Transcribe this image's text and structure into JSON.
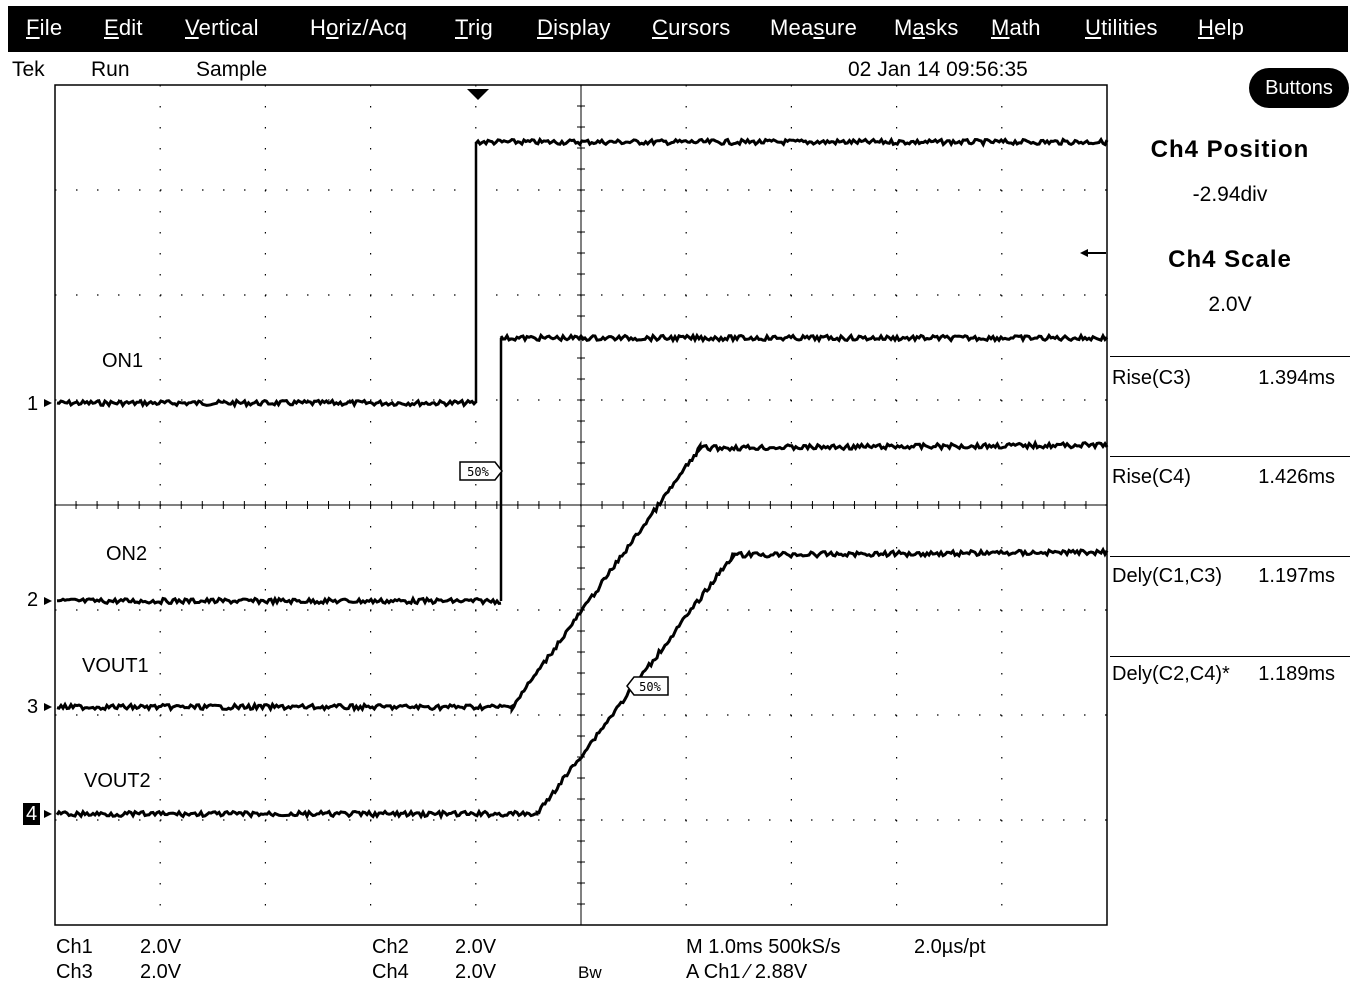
{
  "menu": [
    {
      "pre": "",
      "u": "F",
      "post": "ile"
    },
    {
      "pre": "",
      "u": "E",
      "post": "dit"
    },
    {
      "pre": "",
      "u": "V",
      "post": "ertical"
    },
    {
      "pre": "H",
      "u": "o",
      "post": "riz/Acq"
    },
    {
      "pre": "",
      "u": "T",
      "post": "rig"
    },
    {
      "pre": "",
      "u": "D",
      "post": "isplay"
    },
    {
      "pre": "",
      "u": "C",
      "post": "ursors"
    },
    {
      "pre": "Mea",
      "u": "s",
      "post": "ure"
    },
    {
      "pre": "M",
      "u": "a",
      "post": "sks"
    },
    {
      "pre": "",
      "u": "M",
      "post": "ath"
    },
    {
      "pre": "",
      "u": "U",
      "post": "tilities"
    },
    {
      "pre": "",
      "u": "H",
      "post": "elp"
    }
  ],
  "status": {
    "brand": "Tek",
    "run": "Run",
    "mode": "Sample",
    "datetime": "02 Jan 14 09:56:35"
  },
  "buttons_label": "Buttons",
  "right_panel": {
    "position_title": "Ch4 Position",
    "position_value": "-2.94div",
    "scale_title": "Ch4 Scale",
    "scale_value": "2.0V"
  },
  "measurements": [
    {
      "name": "Rise(C3)",
      "value": "1.394ms"
    },
    {
      "name": "Rise(C4)",
      "value": "1.426ms"
    },
    {
      "name": "Dely(C1,C3)",
      "value": "1.197ms"
    },
    {
      "name": "Dely(C2,C4)*",
      "value": "1.189ms"
    }
  ],
  "waveforms": [
    {
      "label": "ON1",
      "marker": "1"
    },
    {
      "label": "ON2",
      "marker": "2"
    },
    {
      "label": "VOUT1",
      "marker": "3"
    },
    {
      "label": "VOUT2",
      "marker": "4"
    }
  ],
  "level_flags": [
    "50%",
    "50%"
  ],
  "bottom": {
    "ch1": "Ch1",
    "ch1_scale": "2.0V",
    "ch3": "Ch3",
    "ch3_scale": "2.0V",
    "ch2": "Ch2",
    "ch2_scale": "2.0V",
    "ch4": "Ch4",
    "ch4_scale": "2.0V",
    "bw": "Bw",
    "timebase": "M 1.0ms 500kS/s",
    "resolution": "2.0µs/pt",
    "trigger": "A  Ch1  ⁄  2.88V"
  },
  "colors": {
    "background": "#ffffff",
    "trace": "#000000",
    "menubar": "#000000"
  }
}
